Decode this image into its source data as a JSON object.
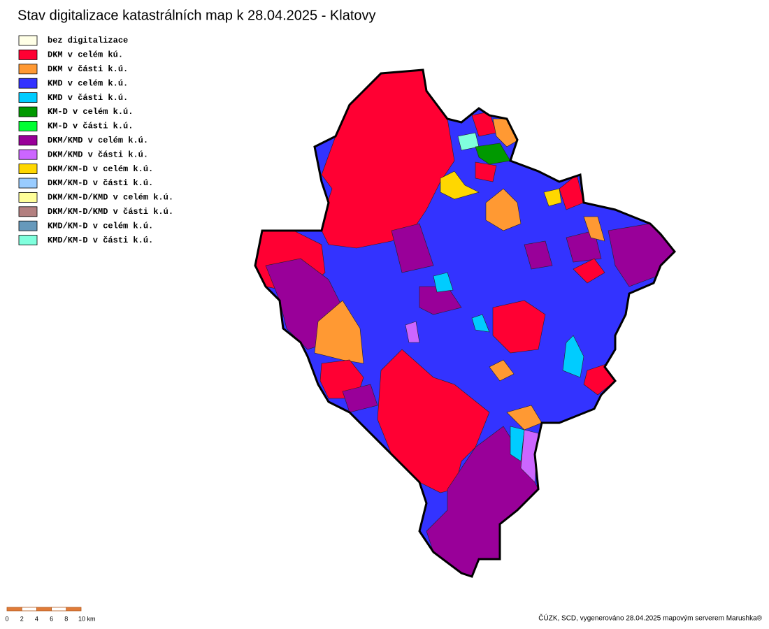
{
  "title": "Stav digitalizace katastrálních map k 28.04.2025 - Klatovy",
  "legend": [
    {
      "label": "bez digitalizace",
      "color": "#ffffe6"
    },
    {
      "label": "DKM v celém kú.",
      "color": "#ff0033"
    },
    {
      "label": "DKM v části k.ú.",
      "color": "#ff9933"
    },
    {
      "label": "KMD v celém k.ú.",
      "color": "#3333ff"
    },
    {
      "label": "KMD v části k.ú.",
      "color": "#00ccff"
    },
    {
      "label": "KM-D v celém k.ú.",
      "color": "#009900"
    },
    {
      "label": "KM-D v části k.ú.",
      "color": "#00ff33"
    },
    {
      "label": "DKM/KMD v celém k.ú.",
      "color": "#990099"
    },
    {
      "label": "DKM/KMD v části k.ú.",
      "color": "#cc66ff"
    },
    {
      "label": "DKM/KM-D v celém k.ú.",
      "color": "#ffd700"
    },
    {
      "label": "DKM/KM-D v části k.ú.",
      "color": "#99ccff"
    },
    {
      "label": "DKM/KM-D/KMD v celém k.ú.",
      "color": "#ffff99"
    },
    {
      "label": "DKM/KM-D/KMD v části k.ú.",
      "color": "#b38080"
    },
    {
      "label": "KMD/KM-D v celém k.ú.",
      "color": "#6699bb"
    },
    {
      "label": "KMD/KM-D v části k.ú.",
      "color": "#80ffdd"
    }
  ],
  "scale": {
    "labels": [
      "0",
      "2",
      "4",
      "6",
      "8",
      "10 km"
    ]
  },
  "credit": "ČÚZK, SCD, vygenerováno 28.04.2025 mapovým serverem Marushka®"
}
